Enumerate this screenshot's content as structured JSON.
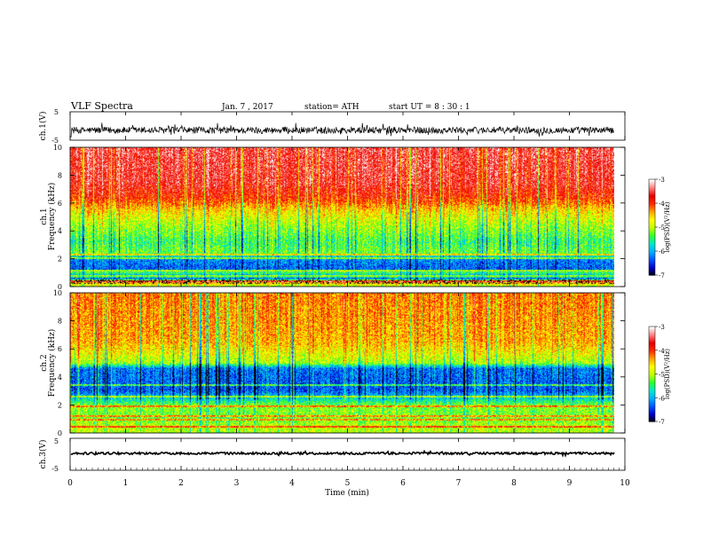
{
  "header": {
    "title": "VLF  Spectra",
    "date": "Jan.  7  , 2017",
    "station": "station= ATH",
    "start": "start  UT  =   8  : 30 : 1"
  },
  "colors": {
    "ramp": [
      "#000000",
      "#0000cc",
      "#0055ff",
      "#00b0ff",
      "#00e8c8",
      "#30ff30",
      "#c0ff00",
      "#ffff00",
      "#ffa500",
      "#ff2a00",
      "#e80000",
      "#ff8080",
      "#ffffff"
    ],
    "waveform": "#000000",
    "frame": "#000000"
  },
  "chart_data": [
    {
      "type": "line",
      "name": "ch1-waveform",
      "ylabel": "ch.1(V)",
      "ylim": [
        -5,
        5
      ],
      "yticks": [
        "5",
        "-5"
      ],
      "xlim": [
        0,
        10
      ],
      "baseline": -1.5,
      "noise_amplitude": 1.2
    },
    {
      "type": "heatmap",
      "name": "ch1-spectrogram",
      "ylabel": "ch.1\nFrequency  (kHz)",
      "ylim": [
        0,
        10
      ],
      "yticks": [
        "0",
        "2",
        "4",
        "6",
        "8",
        "10"
      ],
      "xlim": [
        0,
        10
      ],
      "colorbar": {
        "label": "log(PSD)(V²/Hz)",
        "range": [
          -7,
          -3
        ],
        "ticks": [
          "-3",
          "-4",
          "-5",
          "-6",
          "-7"
        ]
      },
      "profile_khz": [
        [
          0,
          -5.0
        ],
        [
          0.3,
          -4.2
        ],
        [
          0.6,
          -6.5
        ],
        [
          1.0,
          -5.3
        ],
        [
          1.2,
          -6.3
        ],
        [
          2.0,
          -6.1
        ],
        [
          2.4,
          -5.2
        ],
        [
          3.2,
          -5.4
        ],
        [
          4.4,
          -5.0
        ],
        [
          5.4,
          -4.6
        ],
        [
          6.4,
          -3.9
        ],
        [
          7.5,
          -3.6
        ],
        [
          10,
          -3.5
        ]
      ],
      "horizontal_lines_khz": [
        0.35,
        0.7,
        1.1,
        2.0,
        2.3
      ]
    },
    {
      "type": "heatmap",
      "name": "ch2-spectrogram",
      "ylabel": "ch.2\nFrequency  (kHz)",
      "ylim": [
        0,
        10
      ],
      "yticks": [
        "0",
        "2",
        "4",
        "6",
        "8",
        "10"
      ],
      "xlim": [
        0,
        10
      ],
      "colorbar": {
        "label": "log(PSD)(V²/Hz)",
        "range": [
          -7,
          -3
        ],
        "ticks": [
          "-3",
          "-4",
          "-5",
          "-6",
          "-7"
        ]
      },
      "profile_khz": [
        [
          0,
          -5.0
        ],
        [
          0.4,
          -4.9
        ],
        [
          1.0,
          -5.2
        ],
        [
          1.9,
          -5.1
        ],
        [
          2.3,
          -5.6
        ],
        [
          3.0,
          -6.3
        ],
        [
          4.6,
          -6.2
        ],
        [
          5.0,
          -5.0
        ],
        [
          6.5,
          -4.4
        ],
        [
          8.0,
          -4.3
        ],
        [
          10,
          -4.2
        ]
      ],
      "horizontal_lines_khz": [
        0.4,
        0.9,
        1.2,
        1.9,
        2.6,
        3.4
      ]
    },
    {
      "type": "line",
      "name": "ch3-waveform",
      "ylabel": "ch.3(V)",
      "ylim": [
        -5,
        5
      ],
      "yticks": [
        "5",
        "-5"
      ],
      "xlim": [
        0,
        10
      ],
      "baseline": 0.3,
      "noise_amplitude": 0.35,
      "xlabel": "Time  (min)",
      "xticks": [
        "0",
        "1",
        "2",
        "3",
        "4",
        "5",
        "6",
        "7",
        "8",
        "9",
        "10"
      ]
    }
  ]
}
